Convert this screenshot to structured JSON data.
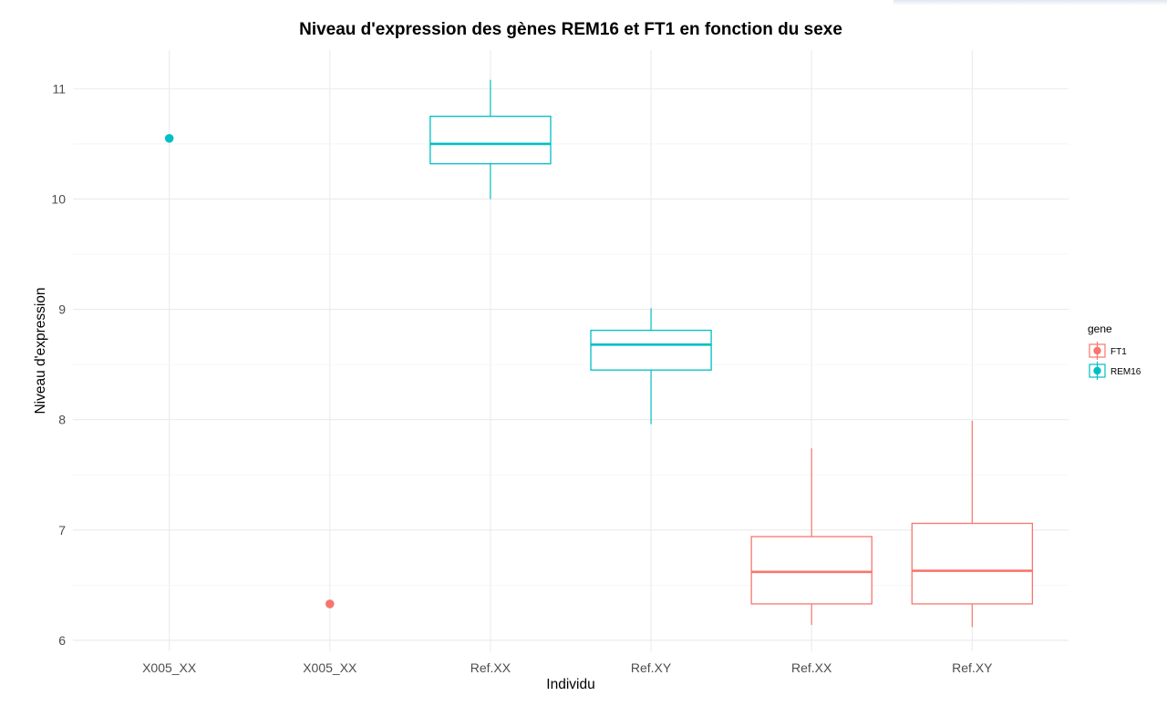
{
  "chart_data": {
    "type": "boxplot",
    "title": "Niveau d'expression des gènes REM16 et FT1 en fonction du sexe",
    "xlabel": "Individu",
    "ylabel": "Niveau d'expression",
    "ylim": [
      5.9,
      11.35
    ],
    "yticks": [
      6,
      7,
      8,
      9,
      10,
      11
    ],
    "grid": true,
    "categories": [
      "X005_XX",
      "X005_XX",
      "Ref.XX",
      "Ref.XY",
      "Ref.XX",
      "Ref.XY"
    ],
    "legend": {
      "title": "gene",
      "placement": "right",
      "entries": [
        {
          "name": "FT1",
          "color": "#F8766D"
        },
        {
          "name": "REM16",
          "color": "#00BFC4"
        }
      ]
    },
    "points": [
      {
        "category_index": 0,
        "gene": "REM16",
        "value": 10.55
      },
      {
        "category_index": 1,
        "gene": "FT1",
        "value": 6.33
      }
    ],
    "boxes": [
      {
        "category_index": 2,
        "gene": "REM16",
        "min": 10.0,
        "q1": 10.32,
        "median": 10.5,
        "q3": 10.75,
        "max": 11.08
      },
      {
        "category_index": 3,
        "gene": "REM16",
        "min": 7.96,
        "q1": 8.45,
        "median": 8.68,
        "q3": 8.81,
        "max": 9.01
      },
      {
        "category_index": 4,
        "gene": "FT1",
        "min": 6.14,
        "q1": 6.33,
        "median": 6.62,
        "q3": 6.94,
        "max": 7.74
      },
      {
        "category_index": 5,
        "gene": "FT1",
        "min": 6.12,
        "q1": 6.33,
        "median": 6.63,
        "q3": 7.06,
        "max": 7.99
      }
    ],
    "colors": {
      "FT1": "#F8766D",
      "REM16": "#00BFC4"
    }
  }
}
